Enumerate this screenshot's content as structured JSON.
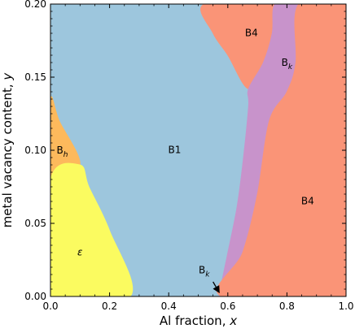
{
  "chart_data": {
    "type": "area",
    "title": "",
    "xlabel": "Al fraction, x",
    "ylabel": "metal vacancy content, y",
    "xlim": [
      0.0,
      1.0
    ],
    "ylim": [
      0.0,
      0.2
    ],
    "xticks": [
      "0.0",
      "0.2",
      "0.4",
      "0.6",
      "0.8",
      "1.0"
    ],
    "yticks": [
      "0.00",
      "0.05",
      "0.10",
      "0.15",
      "0.20"
    ],
    "grid": false,
    "colors": {
      "B1": "#9dc6dd",
      "B4": "#fa9477",
      "Bk": "#c893cb",
      "Bh": "#fdb95c",
      "epsilon": "#fbfb60"
    },
    "regions": [
      {
        "name": "B1",
        "label": "B1",
        "label_at": [
          0.42,
          0.1
        ],
        "boundary": [
          [
            0.0,
            0.2
          ],
          [
            0.0,
            0.135
          ],
          [
            0.03,
            0.12
          ],
          [
            0.1,
            0.09
          ],
          [
            0.13,
            0.075
          ],
          [
            0.2,
            0.045
          ],
          [
            0.27,
            0.0
          ],
          [
            0.57,
            0.0
          ],
          [
            0.6,
            0.03
          ],
          [
            0.63,
            0.06
          ],
          [
            0.65,
            0.09
          ],
          [
            0.67,
            0.13
          ],
          [
            0.67,
            0.142
          ],
          [
            0.6,
            0.165
          ],
          [
            0.55,
            0.18
          ],
          [
            0.52,
            0.2
          ]
        ]
      },
      {
        "name": "B4",
        "label": "B4",
        "label_at": [
          0.68,
          0.18
        ],
        "boundary": [
          [
            0.52,
            0.2
          ],
          [
            0.55,
            0.18
          ],
          [
            0.6,
            0.165
          ],
          [
            0.67,
            0.142
          ],
          [
            0.72,
            0.16
          ],
          [
            0.75,
            0.18
          ],
          [
            0.76,
            0.2
          ]
        ]
      },
      {
        "name": "Bk",
        "label_main": "B",
        "label_sub": "k",
        "label_at": [
          0.8,
          0.16
        ],
        "boundary": [
          [
            0.76,
            0.2
          ],
          [
            0.75,
            0.18
          ],
          [
            0.72,
            0.16
          ],
          [
            0.67,
            0.142
          ],
          [
            0.67,
            0.13
          ],
          [
            0.65,
            0.09
          ],
          [
            0.63,
            0.06
          ],
          [
            0.6,
            0.03
          ],
          [
            0.57,
            0.0
          ],
          [
            0.58,
            0.0
          ],
          [
            0.65,
            0.03
          ],
          [
            0.7,
            0.07
          ],
          [
            0.74,
            0.12
          ],
          [
            0.8,
            0.14
          ],
          [
            0.83,
            0.16
          ],
          [
            0.84,
            0.2
          ]
        ]
      },
      {
        "name": "B4",
        "label": "B4",
        "label_at": [
          0.87,
          0.065
        ],
        "boundary": [
          [
            0.84,
            0.2
          ],
          [
            0.83,
            0.16
          ],
          [
            0.8,
            0.14
          ],
          [
            0.74,
            0.12
          ],
          [
            0.7,
            0.07
          ],
          [
            0.65,
            0.03
          ],
          [
            0.58,
            0.0
          ],
          [
            1.0,
            0.0
          ],
          [
            1.0,
            0.2
          ]
        ]
      },
      {
        "name": "Bh",
        "label_main": "B",
        "label_sub": "h",
        "label_at": [
          0.04,
          0.1
        ],
        "boundary": [
          [
            0.0,
            0.135
          ],
          [
            0.03,
            0.12
          ],
          [
            0.1,
            0.09
          ],
          [
            0.0,
            0.08
          ]
        ]
      },
      {
        "name": "epsilon",
        "label": "ε",
        "label_at": [
          0.1,
          0.03
        ],
        "boundary": [
          [
            0.0,
            0.08
          ],
          [
            0.1,
            0.09
          ],
          [
            0.13,
            0.075
          ],
          [
            0.2,
            0.045
          ],
          [
            0.27,
            0.0
          ],
          [
            0.0,
            0.0
          ]
        ]
      }
    ],
    "annotations": [
      {
        "label_main": "B",
        "label_sub": "k",
        "text_at": [
          0.52,
          0.018
        ],
        "arrow_from": [
          0.55,
          0.01
        ],
        "arrow_to": [
          0.57,
          0.003
        ]
      }
    ]
  }
}
